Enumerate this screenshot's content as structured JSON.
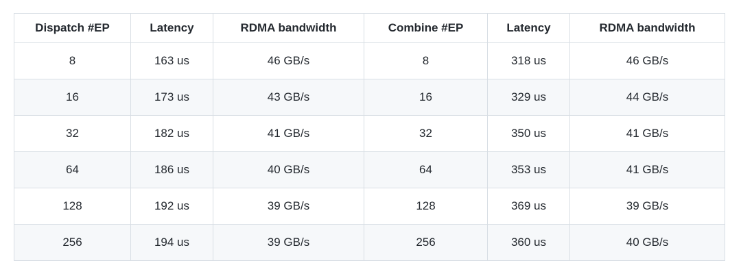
{
  "colors": {
    "background": "#ffffff",
    "stripe": "#f6f8fa",
    "border": "#d8dee4",
    "text": "#24292f"
  },
  "chart_data": {
    "type": "table",
    "title": "",
    "columns": [
      "Dispatch #EP",
      "Latency",
      "RDMA bandwidth",
      "Combine #EP",
      "Latency",
      "RDMA bandwidth"
    ],
    "rows": [
      [
        "8",
        "163 us",
        "46 GB/s",
        "8",
        "318 us",
        "46 GB/s"
      ],
      [
        "16",
        "173 us",
        "43 GB/s",
        "16",
        "329 us",
        "44 GB/s"
      ],
      [
        "32",
        "182 us",
        "41 GB/s",
        "32",
        "350 us",
        "41 GB/s"
      ],
      [
        "64",
        "186 us",
        "40 GB/s",
        "64",
        "353 us",
        "41 GB/s"
      ],
      [
        "128",
        "192 us",
        "39 GB/s",
        "128",
        "369 us",
        "39 GB/s"
      ],
      [
        "256",
        "194 us",
        "39 GB/s",
        "256",
        "360 us",
        "40 GB/s"
      ]
    ],
    "layout_hints": {
      "striped_rows": true,
      "stripe_on": "even_data_rows",
      "alignment": "center",
      "grid": true
    }
  }
}
